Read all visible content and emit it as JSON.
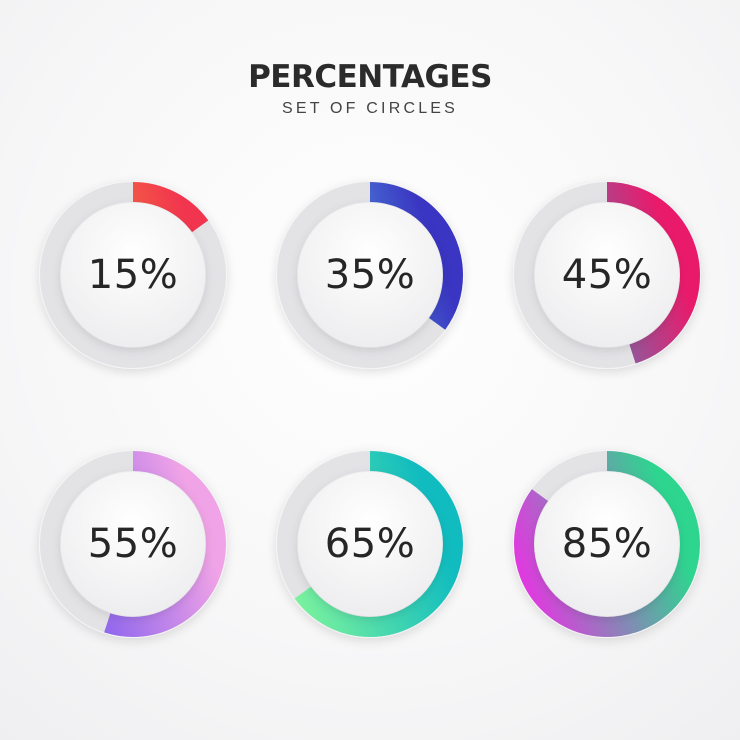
{
  "header": {
    "title": "PERCENTAGES",
    "subtitle": "SET OF CIRCLES"
  },
  "track_color": "#e3e3e6",
  "gauges": [
    {
      "label": "15%",
      "value": 15,
      "gradient": [
        "#f7b02e",
        "#f2354f"
      ]
    },
    {
      "label": "35%",
      "value": 35,
      "gradient": [
        "#5fe3f4",
        "#3a35c2"
      ]
    },
    {
      "label": "45%",
      "value": 45,
      "gradient": [
        "#22a7d8",
        "#ea1a6b"
      ]
    },
    {
      "label": "55%",
      "value": 55,
      "gradient": [
        "#6a4ff0",
        "#f0a3e6"
      ]
    },
    {
      "label": "65%",
      "value": 65,
      "gradient": [
        "#86f79a",
        "#10bcc0"
      ]
    },
    {
      "label": "85%",
      "value": 85,
      "gradient": [
        "#f02ce6",
        "#2dd58f"
      ]
    }
  ]
}
